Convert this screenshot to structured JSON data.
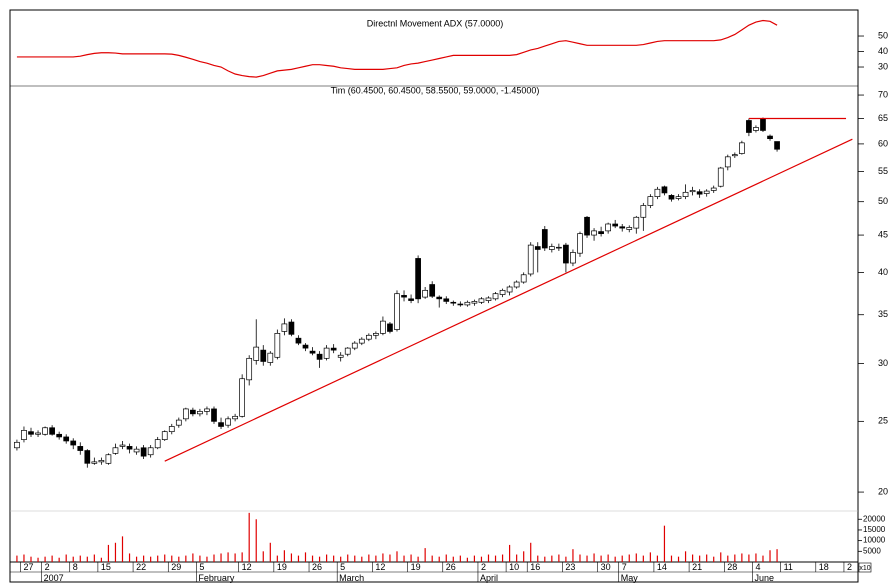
{
  "chart_data": [
    {
      "type": "line",
      "title": "Directnl Movement ADX (57.0000)",
      "color": "#e00000",
      "xlim": [
        -0.7,
        119.5
      ],
      "ylim": [
        18.4,
        65.5
      ],
      "yticks": [
        30,
        40,
        50
      ],
      "values": [
        36.5,
        36.5,
        36.5,
        36.5,
        36.5,
        36.5,
        36.5,
        36.5,
        36.5,
        37,
        38,
        38.8,
        39.2,
        39.2,
        39,
        38.5,
        38.5,
        38.5,
        38.5,
        38.5,
        38.5,
        38.5,
        38.3,
        37.5,
        36.3,
        35,
        33.5,
        32.5,
        31,
        30,
        27.5,
        25.5,
        24.5,
        23.8,
        23.5,
        24.5,
        26,
        27.5,
        28,
        28.5,
        29.5,
        30.5,
        31.5,
        31.5,
        31,
        30.5,
        29.5,
        29,
        28.5,
        28.5,
        28.5,
        28.5,
        28.5,
        29,
        29.5,
        31,
        32,
        32.5,
        33.5,
        34.5,
        35.5,
        36.5,
        37.5,
        37.5,
        37.5,
        37.5,
        37.5,
        37.5,
        37.5,
        37.5,
        37.5,
        38,
        39.5,
        41,
        42,
        43.5,
        45,
        46.5,
        47,
        46,
        45,
        44,
        44,
        44,
        44,
        44,
        44,
        44,
        44,
        44.5,
        45.5,
        46.5,
        47,
        47,
        47,
        47,
        47,
        47,
        47,
        47,
        47.5,
        49,
        51,
        54,
        57,
        59,
        60,
        59.5,
        57
      ]
    },
    {
      "type": "candlestick",
      "title": "Tim (60.4500, 60.4500, 58.5500, 59.0000, -1.45000)",
      "xlim": [
        -0.7,
        119.5
      ],
      "ylim": [
        18.9,
        71.8
      ],
      "log_y": true,
      "yticks": [
        20,
        25,
        30,
        35,
        40,
        45,
        50,
        55,
        60,
        65,
        70
      ],
      "up_color": "#ffffff",
      "down_color": "#000000",
      "edge_color": "#000000",
      "open": [
        23.0,
        23.6,
        24.2,
        24.0,
        24.0,
        24.5,
        24.0,
        23.8,
        23.5,
        23.1,
        22.8,
        21.9,
        22.0,
        21.9,
        22.6,
        23.1,
        23.1,
        22.7,
        23.0,
        22.5,
        23.0,
        23.6,
        24.2,
        24.7,
        25.2,
        25.9,
        25.6,
        25.8,
        26.0,
        24.9,
        24.7,
        25.2,
        25.4,
        28.5,
        30.3,
        31.3,
        30.1,
        30.6,
        33.2,
        34.2,
        32.5,
        31.8,
        31.2,
        30.9,
        30.5,
        31.5,
        30.6,
        30.9,
        31.5,
        32.0,
        32.4,
        32.8,
        33.0,
        34.0,
        33.4,
        37.2,
        36.8,
        41.8,
        37.0,
        38.5,
        37.0,
        36.8,
        36.4,
        36.2,
        36.1,
        36.3,
        36.4,
        36.6,
        36.8,
        37.3,
        37.6,
        38.2,
        38.8,
        39.8,
        43.4,
        45.8,
        43.0,
        43.2,
        43.6,
        41.2,
        42.5,
        47.6,
        45.0,
        45.5,
        45.6,
        46.6,
        46.2,
        45.8,
        46.0,
        47.6,
        49.4,
        50.8,
        52.4,
        51.0,
        50.5,
        50.8,
        51.6,
        51.6,
        51.3,
        51.8,
        52.5,
        55.8,
        57.8,
        58.2,
        64.6,
        62.6,
        65.0,
        61.5,
        60.45
      ],
      "high": [
        23.6,
        24.6,
        24.5,
        24.3,
        24.6,
        24.7,
        24.2,
        24.0,
        23.7,
        23.4,
        22.9,
        22.3,
        22.3,
        22.6,
        23.3,
        23.5,
        23.3,
        23.1,
        23.2,
        23.2,
        23.8,
        24.3,
        24.8,
        25.3,
        26.1,
        26.1,
        26.0,
        26.2,
        26.2,
        25.3,
        25.4,
        25.6,
        29.0,
        30.8,
        34.5,
        31.8,
        31.2,
        33.4,
        34.6,
        34.5,
        32.8,
        32.0,
        31.6,
        31.2,
        31.8,
        31.9,
        31.1,
        31.6,
        32.2,
        32.6,
        33.0,
        33.2,
        34.8,
        34.2,
        37.8,
        37.8,
        37.3,
        42.2,
        38.2,
        38.9,
        37.2,
        37.1,
        36.6,
        36.5,
        36.6,
        36.7,
        37.0,
        37.1,
        37.6,
        38.0,
        38.4,
        39.0,
        40.0,
        44.0,
        44.0,
        46.3,
        43.8,
        43.8,
        43.9,
        43.0,
        45.5,
        47.8,
        46.0,
        46.2,
        46.8,
        47.2,
        46.6,
        46.4,
        47.8,
        49.8,
        51.2,
        52.4,
        52.6,
        51.2,
        51.2,
        52.8,
        52.4,
        52.0,
        52.0,
        52.6,
        55.8,
        58.0,
        58.4,
        60.6,
        65.0,
        63.6,
        65.2,
        61.8,
        60.45
      ],
      "low": [
        22.8,
        23.4,
        23.8,
        23.8,
        23.9,
        23.9,
        23.6,
        23.3,
        22.9,
        22.5,
        21.6,
        21.8,
        21.8,
        21.8,
        22.5,
        22.9,
        22.6,
        22.5,
        22.2,
        22.3,
        22.9,
        23.5,
        24.0,
        24.5,
        25.0,
        25.4,
        25.4,
        25.5,
        24.8,
        24.4,
        24.5,
        25.0,
        25.3,
        28.0,
        29.9,
        29.8,
        29.8,
        30.4,
        32.8,
        32.7,
        31.8,
        31.2,
        30.8,
        29.6,
        30.3,
        31.0,
        30.2,
        30.7,
        31.3,
        31.8,
        32.2,
        32.4,
        32.8,
        33.0,
        33.2,
        36.5,
        36.3,
        36.3,
        36.8,
        36.9,
        35.8,
        36.2,
        36.0,
        35.9,
        35.9,
        36.0,
        36.2,
        36.3,
        36.6,
        37.0,
        37.2,
        38.0,
        38.6,
        39.5,
        40.0,
        42.8,
        42.6,
        42.8,
        40.0,
        40.8,
        42.0,
        44.6,
        44.2,
        44.8,
        45.2,
        46.0,
        45.5,
        45.4,
        45.2,
        45.6,
        49.0,
        50.4,
        51.0,
        50.0,
        50.2,
        50.4,
        51.0,
        50.6,
        50.8,
        51.4,
        52.3,
        55.2,
        57.4,
        58.0,
        61.5,
        62.2,
        62.3,
        60.6,
        58.55
      ],
      "close": [
        23.4,
        24.3,
        24.0,
        24.1,
        24.5,
        24.0,
        23.8,
        23.5,
        23.2,
        22.8,
        21.9,
        22.0,
        22.1,
        22.5,
        23.0,
        23.2,
        22.9,
        22.9,
        22.4,
        23.0,
        23.6,
        24.2,
        24.6,
        25.1,
        26.0,
        25.6,
        25.8,
        26.0,
        25.0,
        24.6,
        25.2,
        25.4,
        28.6,
        30.5,
        31.6,
        30.2,
        31.0,
        33.0,
        34.0,
        32.9,
        32.0,
        31.5,
        31.0,
        30.4,
        31.5,
        31.3,
        30.8,
        31.5,
        32.0,
        32.4,
        32.8,
        33.0,
        34.3,
        33.2,
        37.4,
        37.0,
        36.6,
        36.8,
        37.8,
        37.1,
        36.8,
        36.5,
        36.3,
        36.1,
        36.4,
        36.5,
        36.8,
        36.9,
        37.4,
        37.8,
        38.2,
        38.8,
        39.7,
        43.6,
        43.0,
        43.2,
        43.4,
        43.3,
        41.2,
        42.6,
        45.2,
        45.0,
        45.6,
        45.2,
        46.6,
        46.3,
        46.0,
        46.1,
        47.6,
        49.4,
        50.8,
        52.0,
        51.4,
        50.4,
        50.8,
        51.5,
        51.8,
        51.2,
        51.7,
        52.2,
        55.6,
        57.6,
        58.0,
        60.2,
        62.2,
        63.2,
        62.6,
        61.0,
        59.0
      ],
      "trendlines": [
        {
          "color": "#e00000",
          "x": [
            21.0,
            118.7
          ],
          "y": [
            22.05,
            60.9
          ]
        },
        {
          "color": "#e00000",
          "x": [
            104,
            117.8
          ],
          "y": [
            65,
            65
          ]
        }
      ]
    },
    {
      "type": "bar",
      "color": "#e00000",
      "unit_label": "x10",
      "xlim": [
        -0.7,
        119.5
      ],
      "ylim": [
        0,
        23400
      ],
      "yticks": [
        5000,
        10000,
        15000,
        20000
      ],
      "xticks": [
        {
          "value": 1,
          "label": "27"
        },
        {
          "value": 4,
          "label": "2"
        },
        {
          "value": 8,
          "label": "8"
        },
        {
          "value": 12,
          "label": "15"
        },
        {
          "value": 17,
          "label": "22"
        },
        {
          "value": 22,
          "label": "29"
        },
        {
          "value": 26,
          "label": "5"
        },
        {
          "value": 32,
          "label": "12"
        },
        {
          "value": 37,
          "label": "19"
        },
        {
          "value": 42,
          "label": "26"
        },
        {
          "value": 46,
          "label": "5"
        },
        {
          "value": 51,
          "label": "12"
        },
        {
          "value": 56,
          "label": "19"
        },
        {
          "value": 61,
          "label": "26"
        },
        {
          "value": 66,
          "label": "2"
        },
        {
          "value": 70,
          "label": "10"
        },
        {
          "value": 73,
          "label": "16"
        },
        {
          "value": 78,
          "label": "23"
        },
        {
          "value": 83,
          "label": "30"
        },
        {
          "value": 86,
          "label": "7"
        },
        {
          "value": 91,
          "label": "14"
        },
        {
          "value": 96,
          "label": "21"
        },
        {
          "value": 101,
          "label": "28"
        },
        {
          "value": 105,
          "label": "4"
        },
        {
          "value": 109,
          "label": "11"
        },
        {
          "value": 114,
          "label": "18"
        },
        {
          "value": 118,
          "label": "2"
        }
      ],
      "month_ticks": [
        {
          "value": 4,
          "label": "2007"
        },
        {
          "value": 26,
          "label": "February"
        },
        {
          "value": 46,
          "label": "March"
        },
        {
          "value": 66,
          "label": "April"
        },
        {
          "value": 86,
          "label": "May"
        },
        {
          "value": 105,
          "label": "June"
        }
      ],
      "values": [
        3000,
        3500,
        2500,
        2000,
        2500,
        3000,
        2000,
        3500,
        2500,
        3000,
        2500,
        3500,
        2000,
        8000,
        9000,
        12000,
        4000,
        2500,
        3000,
        2500,
        3000,
        3500,
        3000,
        2500,
        3000,
        4000,
        3000,
        2500,
        3500,
        4000,
        4500,
        4000,
        4500,
        23000,
        20000,
        5000,
        9000,
        3000,
        5500,
        4000,
        3000,
        4500,
        3000,
        2500,
        3500,
        3000,
        2500,
        3500,
        3000,
        2500,
        3500,
        3000,
        4000,
        3500,
        5000,
        3000,
        3500,
        2500,
        6500,
        3000,
        2500,
        3500,
        2500,
        3000,
        2000,
        3000,
        2500,
        3500,
        3000,
        3500,
        8000,
        3500,
        5000,
        9000,
        3000,
        2500,
        3000,
        3500,
        2500,
        6000,
        3500,
        3000,
        4000,
        3000,
        3500,
        2500,
        3000,
        3500,
        4000,
        3000,
        4500,
        3000,
        17000,
        3000,
        2500,
        5000,
        3500,
        3000,
        3500,
        2500,
        4500,
        3000,
        3500,
        4000,
        3500,
        4000,
        3000,
        5500,
        6000
      ]
    }
  ]
}
